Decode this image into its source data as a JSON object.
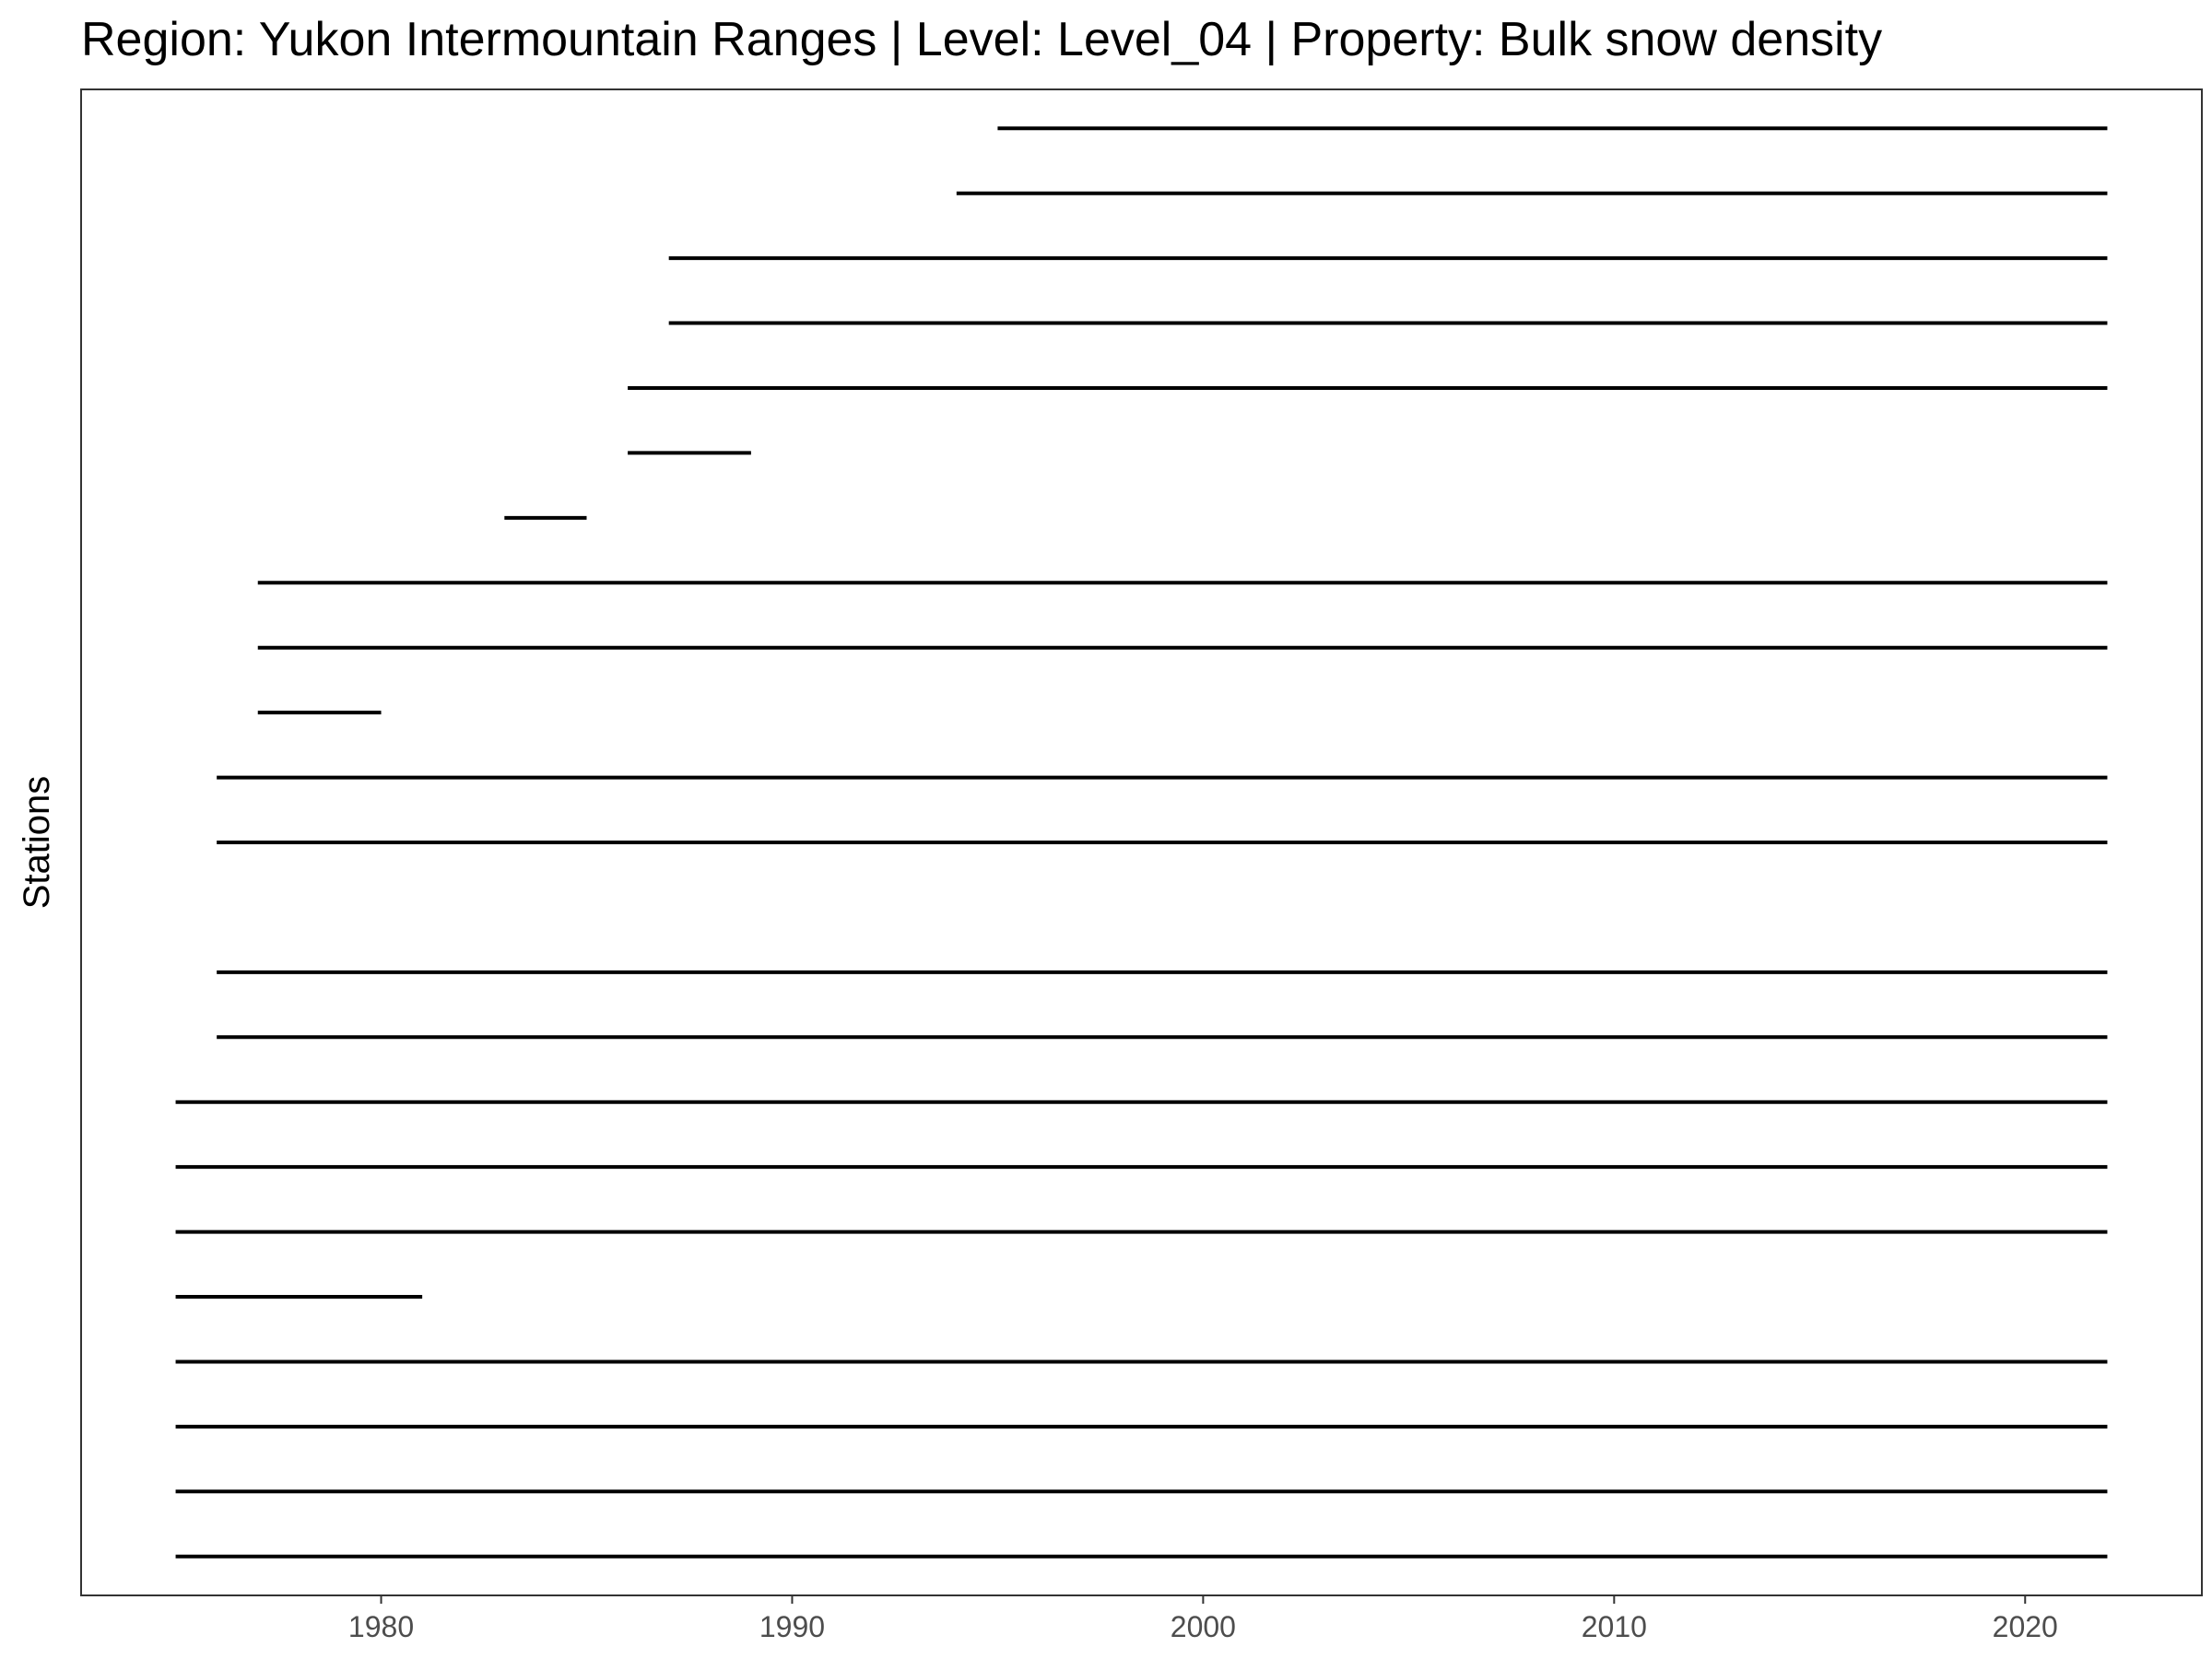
{
  "chart_data": {
    "type": "timeline",
    "title": "Region: Yukon Intermountain Ranges | Level: Level_04 | Property: Bulk snow density",
    "xlabel": "",
    "ylabel": "Stations",
    "xlim": [
      1972.7,
      2024.3
    ],
    "xticks": [
      1980,
      1990,
      2000,
      2010,
      2020
    ],
    "grid": false,
    "station_slots": 23,
    "segments": [
      {
        "slot": 1,
        "start": 1975,
        "end": 2022
      },
      {
        "slot": 2,
        "start": 1975,
        "end": 2022
      },
      {
        "slot": 3,
        "start": 1975,
        "end": 2022
      },
      {
        "slot": 4,
        "start": 1975,
        "end": 2022
      },
      {
        "slot": 5,
        "start": 1975,
        "end": 1981
      },
      {
        "slot": 6,
        "start": 1975,
        "end": 2022
      },
      {
        "slot": 7,
        "start": 1975,
        "end": 2022
      },
      {
        "slot": 8,
        "start": 1975,
        "end": 2022
      },
      {
        "slot": 9,
        "start": 1976,
        "end": 2022
      },
      {
        "slot": 10,
        "start": 1976,
        "end": 2022
      },
      {
        "slot": 12,
        "start": 1976,
        "end": 2022
      },
      {
        "slot": 13,
        "start": 1976,
        "end": 2022
      },
      {
        "slot": 14,
        "start": 1977,
        "end": 1980
      },
      {
        "slot": 15,
        "start": 1977,
        "end": 2022
      },
      {
        "slot": 16,
        "start": 1977,
        "end": 2022
      },
      {
        "slot": 17,
        "start": 1983,
        "end": 1985
      },
      {
        "slot": 18,
        "start": 1986,
        "end": 1989
      },
      {
        "slot": 19,
        "start": 1986,
        "end": 2022
      },
      {
        "slot": 20,
        "start": 1987,
        "end": 2022
      },
      {
        "slot": 21,
        "start": 1987,
        "end": 2022
      },
      {
        "slot": 22,
        "start": 1994,
        "end": 2022
      },
      {
        "slot": 23,
        "start": 1995,
        "end": 2022
      }
    ]
  }
}
